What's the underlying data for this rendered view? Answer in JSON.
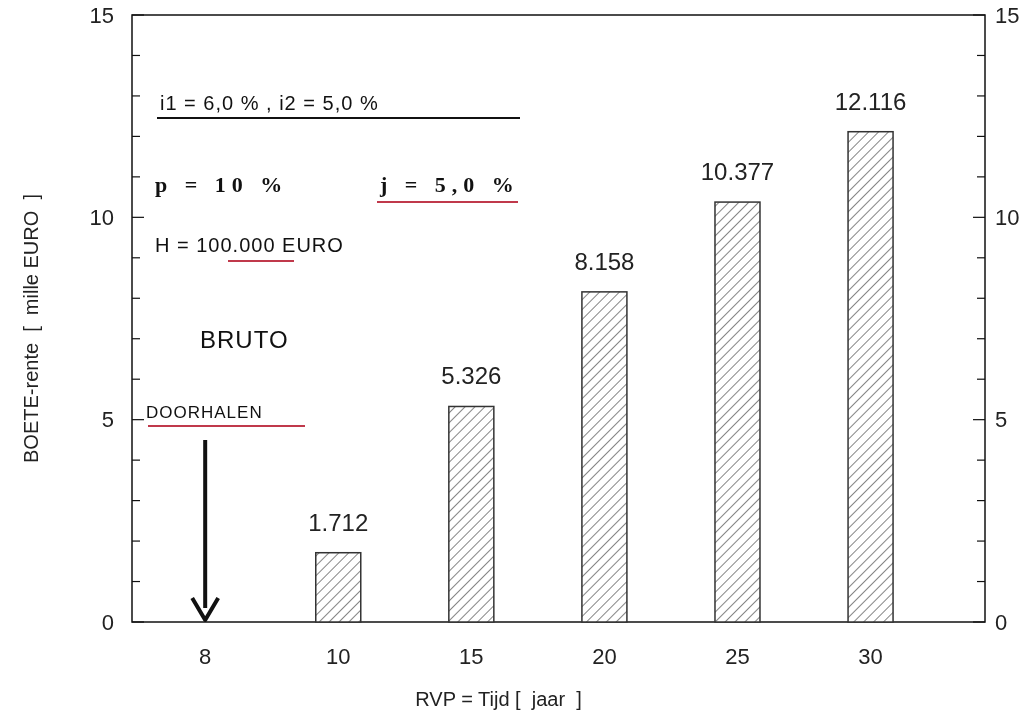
{
  "chart_data": {
    "type": "bar",
    "xlabel": "RVP = Tijd [  jaar  ]",
    "ylabel": "BOETE-rente  [  mille EURO  ]",
    "categories": [
      "8",
      "10",
      "15",
      "20",
      "25",
      "30"
    ],
    "values": [
      null,
      1.712,
      5.326,
      8.158,
      10.377,
      12.116
    ],
    "color": "#333333",
    "data_labels": true,
    "ylim": [
      0,
      15
    ],
    "yticks": [
      0,
      {
        "value": 1,
        "label": null
      },
      {
        "value": 2,
        "label": null
      },
      {
        "value": 3,
        "label": null
      },
      {
        "value": 4,
        "label": null
      },
      5,
      {
        "value": 6,
        "label": null
      },
      {
        "value": 7,
        "label": null
      },
      {
        "value": 8,
        "label": null
      },
      {
        "value": 9,
        "label": null
      },
      10,
      {
        "value": 11,
        "label": null
      },
      {
        "value": 12,
        "label": null
      },
      {
        "value": 13,
        "label": null
      },
      {
        "value": 14,
        "label": null
      },
      15
    ],
    "y2lim": [
      0,
      15
    ],
    "y2ticks": [
      0,
      {
        "value": 1,
        "label": null
      },
      {
        "value": 2,
        "label": null
      },
      {
        "value": 3,
        "label": null
      },
      {
        "value": 4,
        "label": null
      },
      5,
      {
        "value": 6,
        "label": null
      },
      {
        "value": 7,
        "label": null
      },
      {
        "value": 8,
        "label": null
      },
      {
        "value": 9,
        "label": null
      },
      10,
      {
        "value": 11,
        "label": null
      },
      {
        "value": 12,
        "label": null
      },
      {
        "value": 13,
        "label": null
      },
      {
        "value": 14,
        "label": null
      },
      15
    ],
    "annotations": [
      "i1 = 6,0 % , i2 = 5,0 %",
      "p = 10 %",
      "j = 5,0 %",
      "H = 100.000 EURO",
      "BRUTO",
      "DOORHALEN"
    ]
  }
}
